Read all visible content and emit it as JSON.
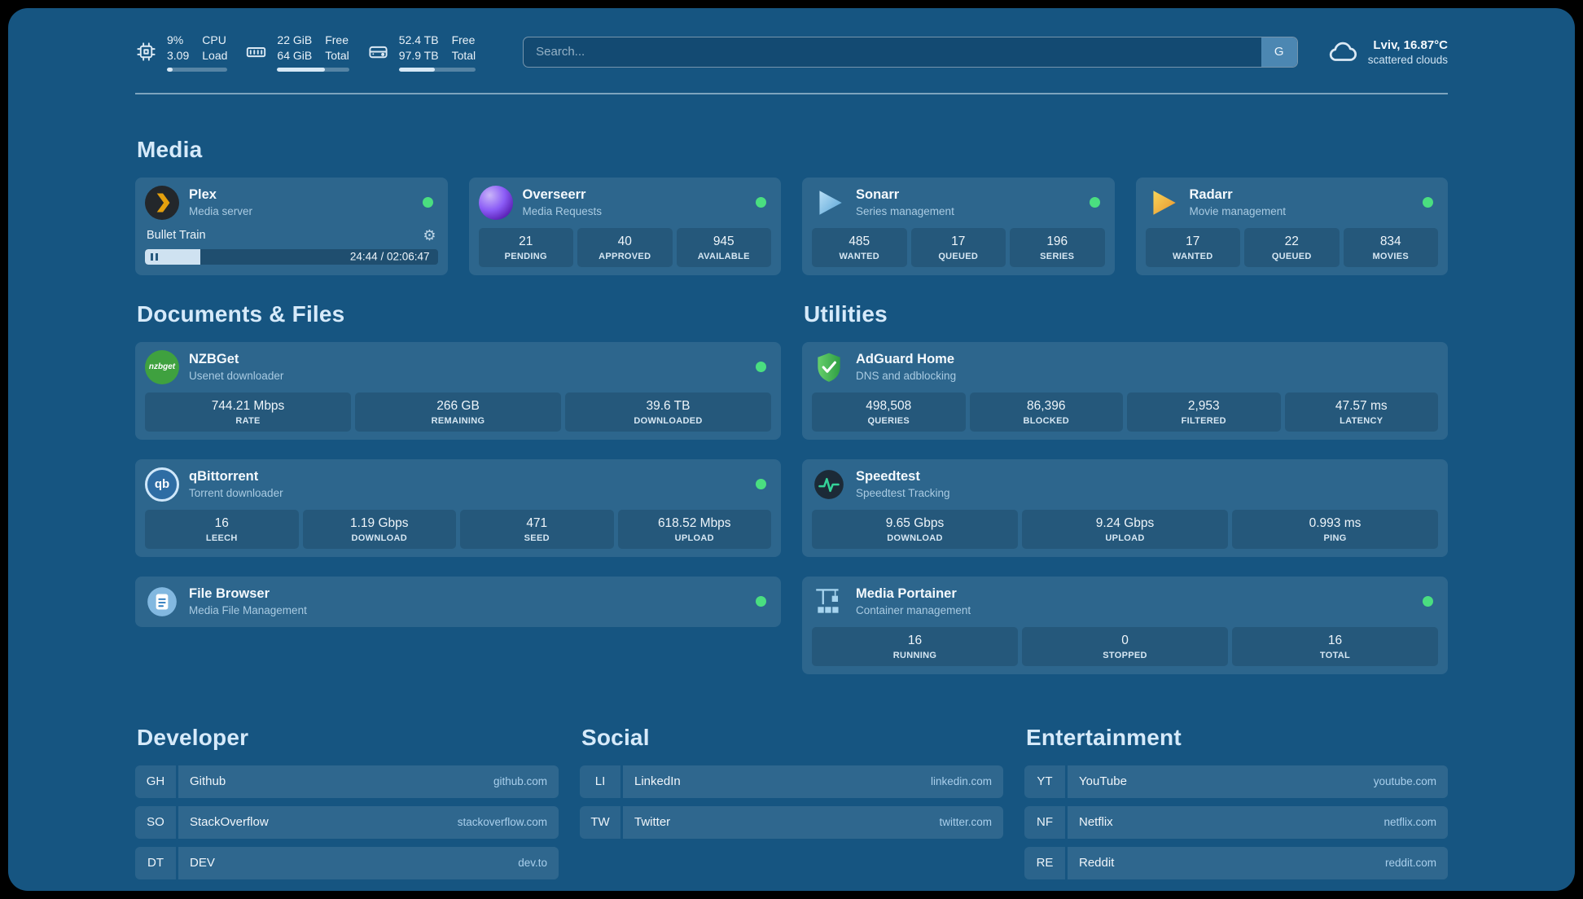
{
  "theme": {
    "background": "#165581",
    "card": "rgba(255,255,255,0.10)",
    "status_green": "#4ade80",
    "accent_text": "#a9cfec"
  },
  "icons": {
    "cpu": "chip",
    "memory": "ram-stick",
    "disk": "hard-drive",
    "weather": "cloud",
    "plex": "amber-chevron-circle",
    "overseerr": "purple-gradient-circle",
    "sonarr": "blue-play-arrow",
    "radarr": "orange-play-arrow",
    "nzbget": "green-circle-wordmark",
    "qbittorrent": "qb-circle",
    "filebrowser": "blue-circle-document",
    "adguard": "green-shield-check",
    "speedtest": "dark-circle-pulse",
    "portainer": "crane-containers",
    "gear": "gear",
    "pause": "pause-bars"
  },
  "topbar": {
    "cpu": {
      "value1": "9%",
      "value2": "3.09",
      "label1": "CPU",
      "label2": "Load",
      "progress": 9
    },
    "memory": {
      "value1": "22 GiB",
      "value2": "64 GiB",
      "label1": "Free",
      "label2": "Total",
      "progress": 66
    },
    "disk": {
      "value1": "52.4 TB",
      "value2": "97.9 TB",
      "label1": "Free",
      "label2": "Total",
      "progress": 47
    },
    "search": {
      "placeholder": "Search...",
      "button_label": "G"
    },
    "weather": {
      "location": "Lviv, 16.87°C",
      "condition": "scattered clouds"
    }
  },
  "media": {
    "heading": "Media",
    "plex": {
      "name": "Plex",
      "subtitle": "Media server",
      "now_playing": "Bullet Train",
      "time": "24:44 / 02:06:47",
      "progress": 19
    },
    "overseerr": {
      "name": "Overseerr",
      "subtitle": "Media Requests",
      "stats": [
        {
          "value": "21",
          "label": "PENDING"
        },
        {
          "value": "40",
          "label": "APPROVED"
        },
        {
          "value": "945",
          "label": "AVAILABLE"
        }
      ]
    },
    "sonarr": {
      "name": "Sonarr",
      "subtitle": "Series management",
      "stats": [
        {
          "value": "485",
          "label": "WANTED"
        },
        {
          "value": "17",
          "label": "QUEUED"
        },
        {
          "value": "196",
          "label": "SERIES"
        }
      ]
    },
    "radarr": {
      "name": "Radarr",
      "subtitle": "Movie management",
      "stats": [
        {
          "value": "17",
          "label": "WANTED"
        },
        {
          "value": "22",
          "label": "QUEUED"
        },
        {
          "value": "834",
          "label": "MOVIES"
        }
      ]
    }
  },
  "documents": {
    "heading": "Documents & Files",
    "nzbget": {
      "name": "NZBGet",
      "subtitle": "Usenet downloader",
      "logo_text": "nzbget",
      "stats": [
        {
          "value": "744.21 Mbps",
          "label": "RATE"
        },
        {
          "value": "266 GB",
          "label": "REMAINING"
        },
        {
          "value": "39.6 TB",
          "label": "DOWNLOADED"
        }
      ]
    },
    "qbittorrent": {
      "name": "qBittorrent",
      "subtitle": "Torrent downloader",
      "logo_text": "qb",
      "stats": [
        {
          "value": "16",
          "label": "LEECH"
        },
        {
          "value": "1.19 Gbps",
          "label": "DOWNLOAD"
        },
        {
          "value": "471",
          "label": "SEED"
        },
        {
          "value": "618.52 Mbps",
          "label": "UPLOAD"
        }
      ]
    },
    "filebrowser": {
      "name": "File Browser",
      "subtitle": "Media File Management"
    }
  },
  "utilities": {
    "heading": "Utilities",
    "adguard": {
      "name": "AdGuard Home",
      "subtitle": "DNS and adblocking",
      "stats": [
        {
          "value": "498,508",
          "label": "QUERIES"
        },
        {
          "value": "86,396",
          "label": "BLOCKED"
        },
        {
          "value": "2,953",
          "label": "FILTERED"
        },
        {
          "value": "47.57 ms",
          "label": "LATENCY"
        }
      ]
    },
    "speedtest": {
      "name": "Speedtest",
      "subtitle": "Speedtest Tracking",
      "stats": [
        {
          "value": "9.65 Gbps",
          "label": "DOWNLOAD"
        },
        {
          "value": "9.24 Gbps",
          "label": "UPLOAD"
        },
        {
          "value": "0.993 ms",
          "label": "PING"
        }
      ]
    },
    "portainer": {
      "name": "Media Portainer",
      "subtitle": "Container management",
      "stats": [
        {
          "value": "16",
          "label": "RUNNING"
        },
        {
          "value": "0",
          "label": "STOPPED"
        },
        {
          "value": "16",
          "label": "TOTAL"
        }
      ]
    }
  },
  "bookmarks": [
    {
      "heading": "Developer",
      "items": [
        {
          "abbr": "GH",
          "name": "Github",
          "url": "github.com"
        },
        {
          "abbr": "SO",
          "name": "StackOverflow",
          "url": "stackoverflow.com"
        },
        {
          "abbr": "DT",
          "name": "DEV",
          "url": "dev.to"
        }
      ]
    },
    {
      "heading": "Social",
      "items": [
        {
          "abbr": "LI",
          "name": "LinkedIn",
          "url": "linkedin.com"
        },
        {
          "abbr": "TW",
          "name": "Twitter",
          "url": "twitter.com"
        }
      ]
    },
    {
      "heading": "Entertainment",
      "items": [
        {
          "abbr": "YT",
          "name": "YouTube",
          "url": "youtube.com"
        },
        {
          "abbr": "NF",
          "name": "Netflix",
          "url": "netflix.com"
        },
        {
          "abbr": "RE",
          "name": "Reddit",
          "url": "reddit.com"
        }
      ]
    }
  ]
}
